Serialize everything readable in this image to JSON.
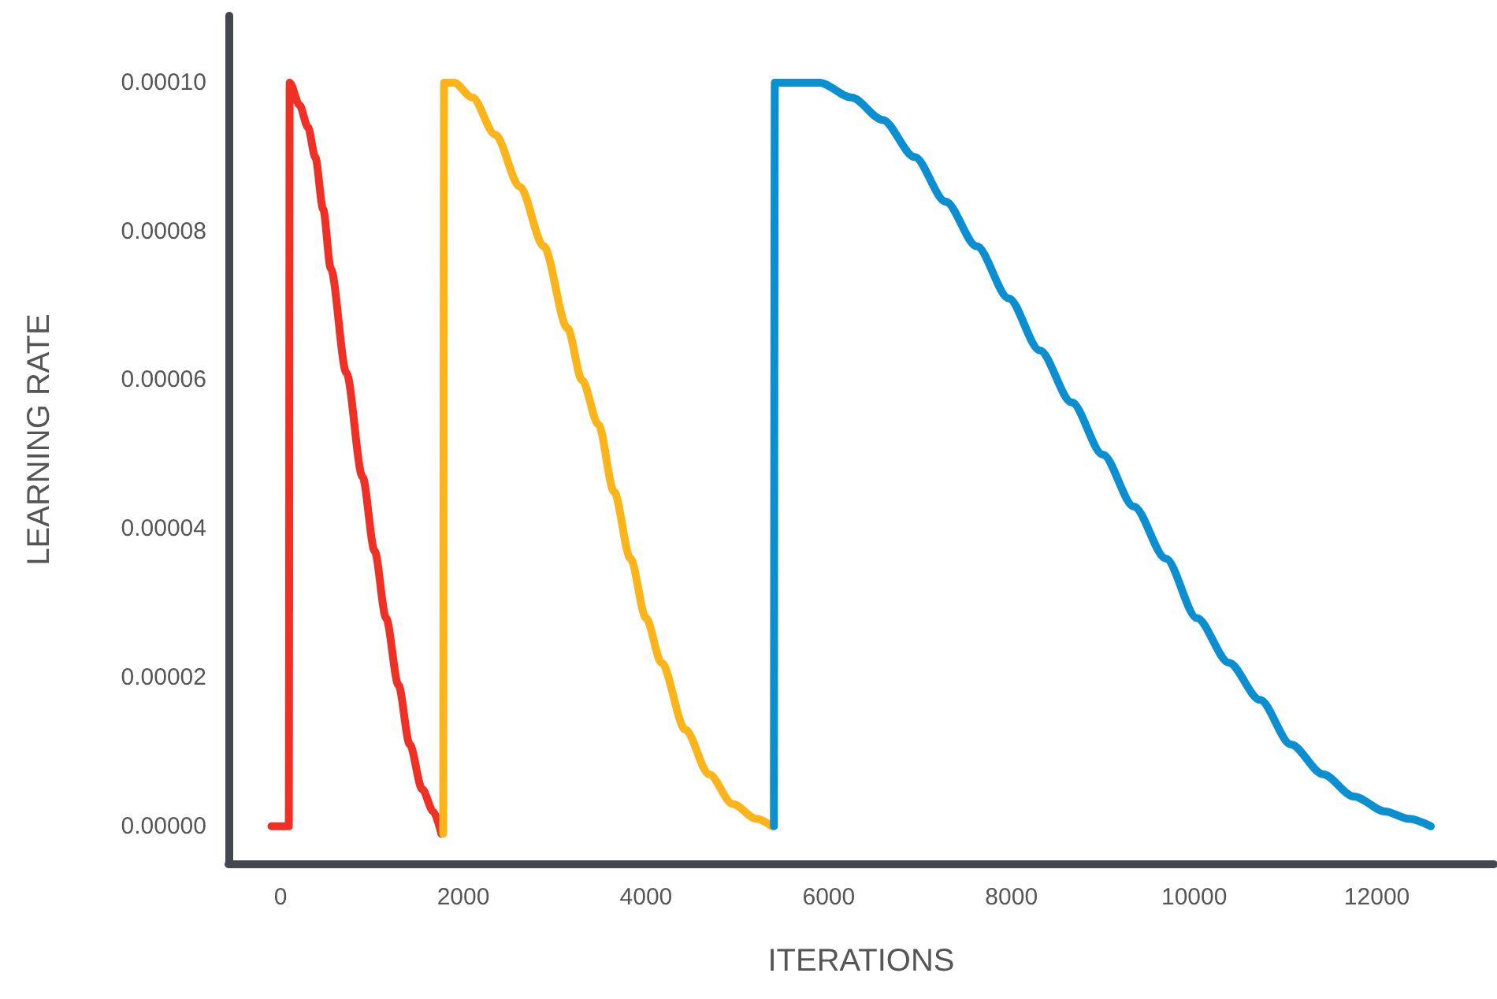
{
  "chart_data": {
    "type": "line",
    "xlabel": "ITERATIONS",
    "ylabel": "LEARNING RATE",
    "xlim": [
      -570,
      13280
    ],
    "ylim": [
      -5e-06,
      0.000109
    ],
    "xticks": [
      0,
      2000,
      4000,
      6000,
      8000,
      10000,
      12000
    ],
    "yticks": [
      {
        "value": 0,
        "label": "0.00000"
      },
      {
        "value": 2e-05,
        "label": "0.00002"
      },
      {
        "value": 4e-05,
        "label": "0.00004"
      },
      {
        "value": 6e-05,
        "label": "0.00006"
      },
      {
        "value": 8e-05,
        "label": "0.00008"
      },
      {
        "value": 0.0001,
        "label": "0.00010"
      }
    ],
    "grid": false,
    "marker": "none",
    "line_style": "solid",
    "series": [
      {
        "color": "#ee3124",
        "x": [
          -100,
          90,
          100,
          207,
          300,
          380,
          466,
          550,
          720,
          897,
          1030,
          1155,
          1290,
          1414,
          1550,
          1672,
          1760
        ],
        "values": [
          0,
          0,
          0.0001,
          9.7e-05,
          9.4e-05,
          9e-05,
          8.3e-05,
          7.5e-05,
          6.1e-05,
          4.7e-05,
          3.7e-05,
          2.8e-05,
          1.9e-05,
          1.1e-05,
          5e-06,
          2e-06,
          -1e-06
        ]
      },
      {
        "color": "#fbb41a",
        "x": [
          1780,
          1790,
          1900,
          2100,
          2350,
          2620,
          2880,
          3140,
          3300,
          3480,
          3650,
          3830,
          4000,
          4170,
          4430,
          4690,
          4950,
          5210,
          5380
        ],
        "values": [
          -1e-06,
          0.0001,
          0.0001,
          9.8e-05,
          9.3e-05,
          8.6e-05,
          7.8e-05,
          6.7e-05,
          6e-05,
          5.4e-05,
          4.5e-05,
          3.6e-05,
          2.8e-05,
          2.2e-05,
          1.3e-05,
          7e-06,
          3e-06,
          1e-06,
          0
        ]
      },
      {
        "color": "#0b8fd0",
        "x": [
          5400,
          5410,
          5900,
          6250,
          6590,
          6940,
          7280,
          7620,
          7970,
          8310,
          8660,
          9000,
          9340,
          9690,
          10030,
          10380,
          10720,
          11060,
          11410,
          11750,
          12090,
          12350,
          12590
        ],
        "values": [
          0,
          0.0001,
          0.0001,
          9.8e-05,
          9.5e-05,
          9e-05,
          8.4e-05,
          7.8e-05,
          7.1e-05,
          6.4e-05,
          5.7e-05,
          5e-05,
          4.3e-05,
          3.6e-05,
          2.8e-05,
          2.2e-05,
          1.7e-05,
          1.1e-05,
          7e-06,
          4e-06,
          2e-06,
          1e-06,
          0
        ]
      }
    ]
  }
}
